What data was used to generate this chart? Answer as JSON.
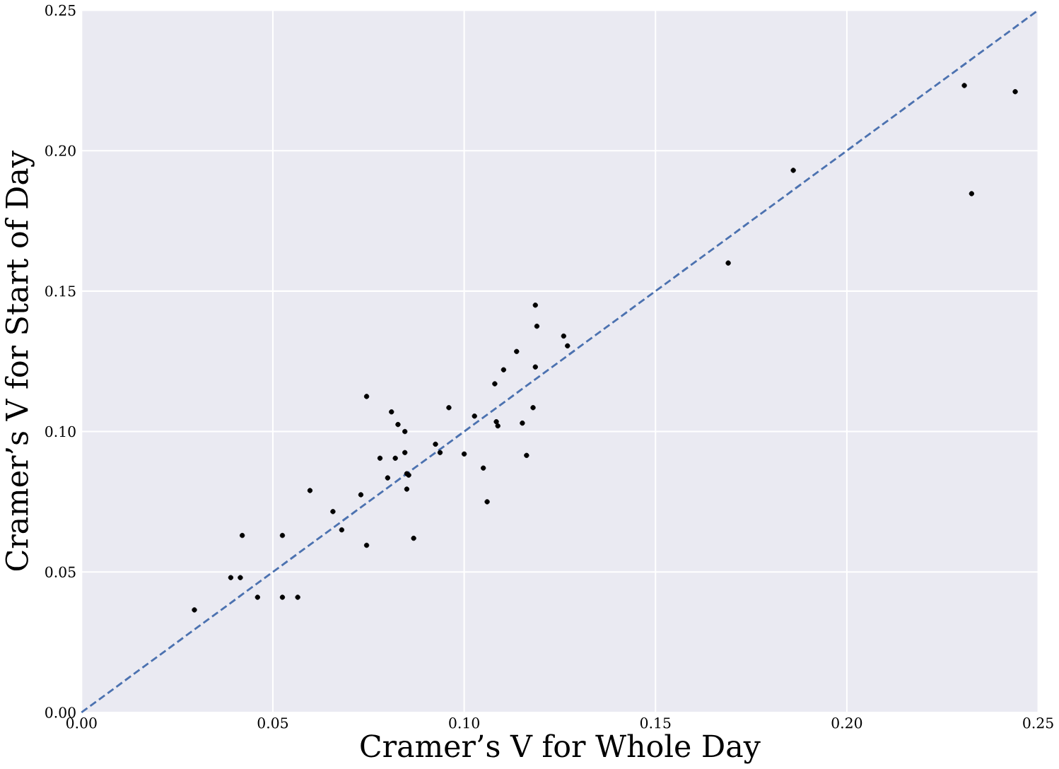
{
  "chart_data": {
    "type": "scatter",
    "xlabel": "Cramer’s V for Whole Day",
    "ylabel": "Cramer’s V for Start of Day",
    "xlim": [
      0,
      0.25
    ],
    "ylim": [
      0,
      0.25
    ],
    "xticks": [
      {
        "value": 0,
        "label": "0.00"
      },
      {
        "value": 0.05,
        "label": "0.05"
      },
      {
        "value": 0.1,
        "label": "0.10"
      },
      {
        "value": 0.15,
        "label": "0.15"
      },
      {
        "value": 0.2,
        "label": "0.20"
      },
      {
        "value": 0.25,
        "label": "0.25"
      }
    ],
    "yticks": [
      {
        "value": 0,
        "label": "0.00"
      },
      {
        "value": 0.05,
        "label": "0.05"
      },
      {
        "value": 0.1,
        "label": "0.10"
      },
      {
        "value": 0.15,
        "label": "0.15"
      },
      {
        "value": 0.2,
        "label": "0.20"
      },
      {
        "value": 0.25,
        "label": "0.25"
      }
    ],
    "grid": true,
    "series": [
      {
        "color": "#000000",
        "marker": "circle",
        "x": [
          0.0295,
          0.039,
          0.0415,
          0.042,
          0.046,
          0.0525,
          0.0525,
          0.0565,
          0.0597,
          0.0657,
          0.068,
          0.073,
          0.0745,
          0.0745,
          0.078,
          0.08,
          0.081,
          0.082,
          0.0827,
          0.0845,
          0.0845,
          0.085,
          0.0855,
          0.085,
          0.0868,
          0.0925,
          0.0937,
          0.096,
          0.1,
          0.1027,
          0.105,
          0.106,
          0.1084,
          0.1088,
          0.108,
          0.1103,
          0.1137,
          0.1152,
          0.1163,
          0.118,
          0.1186,
          0.1186,
          0.119,
          0.126,
          0.127,
          0.169,
          0.186,
          0.2307,
          0.2326,
          0.244
        ],
        "values": [
          0.0365,
          0.048,
          0.048,
          0.063,
          0.041,
          0.063,
          0.041,
          0.041,
          0.079,
          0.0715,
          0.065,
          0.0775,
          0.0595,
          0.1125,
          0.0905,
          0.0835,
          0.107,
          0.0905,
          0.1025,
          0.1,
          0.0925,
          0.085,
          0.0845,
          0.0795,
          0.062,
          0.0955,
          0.0925,
          0.1085,
          0.092,
          0.1055,
          0.087,
          0.075,
          0.1035,
          0.102,
          0.117,
          0.122,
          0.1285,
          0.103,
          0.0915,
          0.1085,
          0.123,
          0.145,
          0.1375,
          0.134,
          0.1305,
          0.16,
          0.193,
          0.2232,
          0.1847,
          0.221
        ]
      },
      {
        "type": "line",
        "color": "#4c72b0",
        "line_style": "dashed",
        "marker": "none",
        "x": [
          0,
          0.25
        ],
        "values": [
          0,
          0.25
        ]
      }
    ]
  }
}
